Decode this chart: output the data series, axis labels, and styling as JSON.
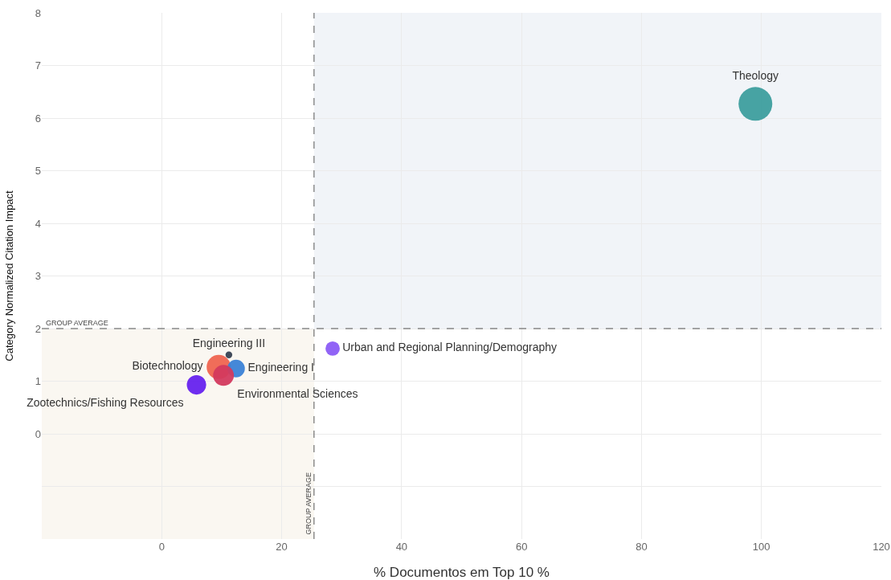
{
  "chart_data": {
    "type": "bubble",
    "xlabel": "% Documentos em Top 10 %",
    "ylabel": "Category Normalized Citation Impact",
    "xlim": [
      -20,
      120
    ],
    "xticks": [
      0,
      20,
      40,
      60,
      80,
      100,
      120
    ],
    "ylim": [
      -2,
      8
    ],
    "yticks": [
      {
        "value": -1,
        "label": null
      },
      0,
      1,
      2,
      3,
      4,
      5,
      6,
      7,
      8
    ],
    "grid": true,
    "legend": false,
    "series": [
      {
        "name": "Theology",
        "color": "#3d9e9e",
        "x": [
          99
        ],
        "values": [
          6.27
        ],
        "sizes": [
          1
        ]
      },
      {
        "name": "Urban and Regional Planning/Demography",
        "color": "#8b5cf6",
        "x": [
          28.5
        ],
        "values": [
          1.62
        ],
        "sizes": [
          0.18
        ]
      },
      {
        "name": "Engineering III",
        "color": "#374151",
        "x": [
          11.2
        ],
        "values": [
          1.5
        ],
        "sizes": [
          0.04
        ]
      },
      {
        "name": "Biotechnology",
        "color": "#ef6550",
        "x": [
          9.5
        ],
        "values": [
          1.27
        ],
        "sizes": [
          0.51
        ]
      },
      {
        "name": "Engineering I",
        "color": "#3b82d6",
        "x": [
          12.4
        ],
        "values": [
          1.24
        ],
        "sizes": [
          0.27
        ]
      },
      {
        "name": "Environmental Sciences",
        "color": "#d33a5e",
        "x": [
          10.3
        ],
        "values": [
          1.11
        ],
        "sizes": [
          0.38
        ]
      },
      {
        "name": "Zootechnics/Fishing Resources",
        "color": "#6622ee",
        "x": [
          5.8
        ],
        "values": [
          0.93
        ],
        "sizes": [
          0.33
        ]
      }
    ],
    "ref_lines": [
      {
        "axis": "x",
        "value": 25.4,
        "label": "GROUP AVERAGE",
        "line_style": "dashed"
      },
      {
        "axis": "y",
        "value": 2,
        "label": "GROUP AVERAGE",
        "line_style": "dashed"
      }
    ],
    "bands": [
      {
        "axis": "y",
        "from": 2,
        "to": 8,
        "color": "#f1f4f8"
      },
      {
        "axis": "y",
        "from": -2,
        "to": 2,
        "color": "#faf7f1"
      }
    ]
  }
}
